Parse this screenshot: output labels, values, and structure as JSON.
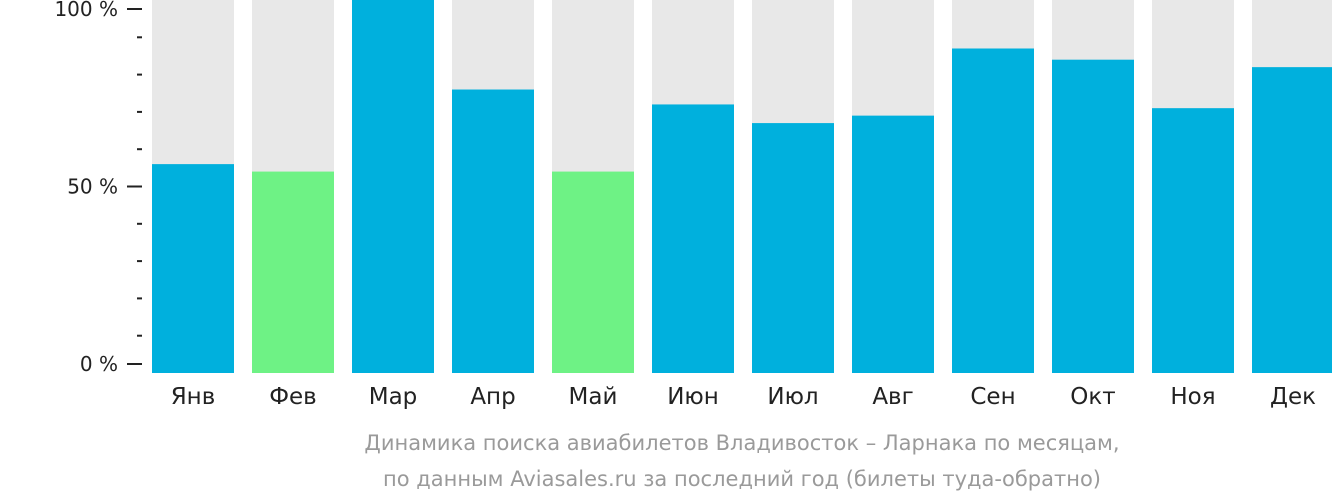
{
  "chart_data": {
    "type": "bar",
    "categories": [
      "Янв",
      "Фев",
      "Мар",
      "Апр",
      "Май",
      "Июн",
      "Июл",
      "Авг",
      "Сен",
      "Окт",
      "Ноя",
      "Дек"
    ],
    "values": [
      56,
      54,
      100,
      76,
      54,
      72,
      67,
      69,
      87,
      84,
      71,
      82
    ],
    "lowest": [
      "Фев",
      "Май"
    ],
    "ylim": [
      0,
      100
    ],
    "yticks": [
      {
        "value": 0,
        "label": "0 %"
      },
      {
        "value": 50,
        "label": "50 %"
      },
      {
        "value": 100,
        "label": "100 %"
      }
    ],
    "minor_tick_step": 10,
    "colors": {
      "bar": "#00b0dd",
      "lowest_bar": "#6ef285",
      "track": "#e8e8e8",
      "axis": "#222222"
    }
  },
  "caption": {
    "line1": "Динамика поиска авиабилетов Владивосток – Ларнака по месяцам,",
    "line2": "по данным Aviasales.ru за последний год (билеты туда-обратно)"
  }
}
